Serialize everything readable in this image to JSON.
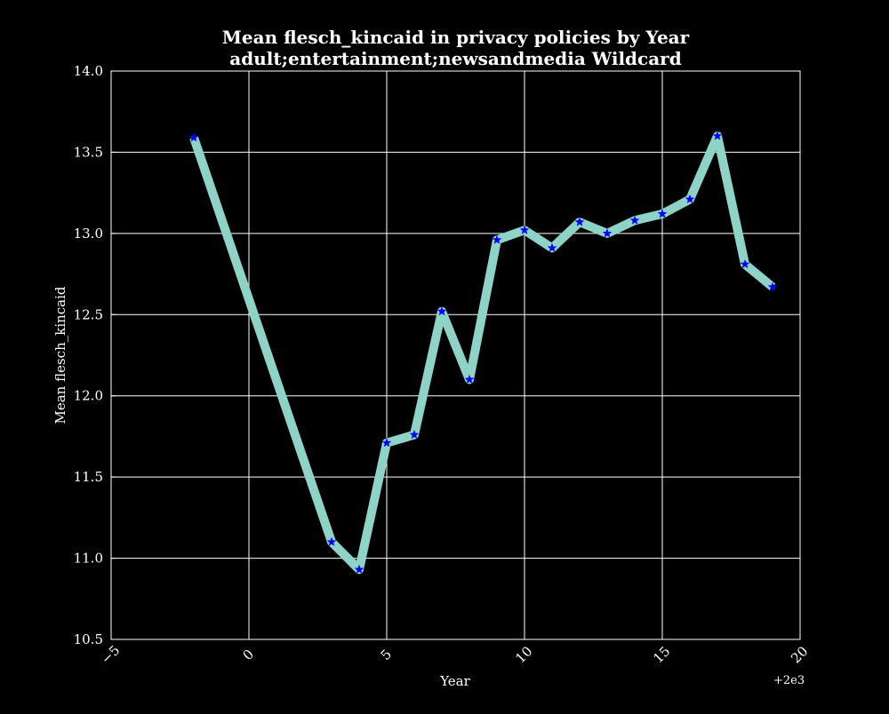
{
  "chart_data": {
    "type": "line",
    "title": "Mean flesch_kincaid in privacy policies by Year",
    "subtitle": "adult;entertainment;newsandmedia Wildcard",
    "xlabel": "Year",
    "ylabel": "Mean flesch_kincaid",
    "x_offset_label": "+2e3",
    "xlim": [
      -5,
      20
    ],
    "ylim": [
      10.5,
      14.0
    ],
    "xticks": [
      -5,
      0,
      5,
      10,
      15,
      20
    ],
    "xtick_labels": [
      "−5",
      "0",
      "5",
      "10",
      "15",
      "20"
    ],
    "yticks": [
      10.5,
      11.0,
      11.5,
      12.0,
      12.5,
      13.0,
      13.5,
      14.0
    ],
    "ytick_labels": [
      "10.5",
      "11.0",
      "11.5",
      "12.0",
      "12.5",
      "13.0",
      "13.5",
      "14.0"
    ],
    "grid": true,
    "marker": "star",
    "colors": {
      "background": "#000000",
      "line": "#8dd3c7",
      "marker": "#0000ff",
      "grid": "#ffffff",
      "text": "#ffffff"
    },
    "series": [
      {
        "x": [
          -2,
          3,
          4,
          5,
          6,
          7,
          8,
          9,
          10,
          11,
          12,
          13,
          14,
          15,
          16,
          17,
          18,
          19
        ],
        "values": [
          13.59,
          11.1,
          10.93,
          11.71,
          11.76,
          12.52,
          12.1,
          12.96,
          13.02,
          12.91,
          13.07,
          13.0,
          13.08,
          13.12,
          13.21,
          13.6,
          12.81,
          12.67
        ]
      }
    ]
  }
}
